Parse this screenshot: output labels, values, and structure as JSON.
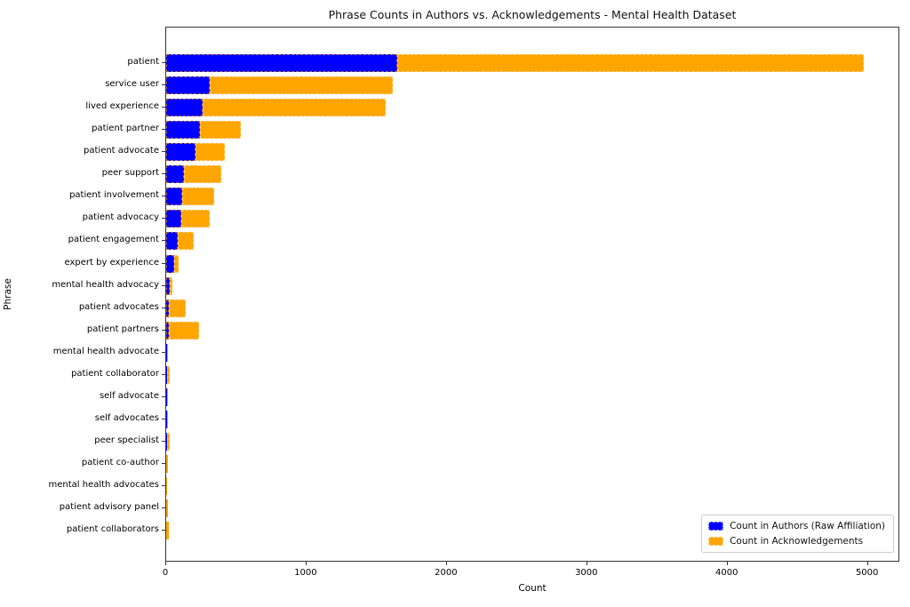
{
  "title": "Phrase Counts in Authors vs. Acknowledgements - Mental Health Dataset",
  "xlabel": "Count",
  "ylabel": "Phrase",
  "legend": {
    "items": [
      {
        "label": "Count in Authors (Raw Affiliation)",
        "color": "#0000ff"
      },
      {
        "label": "Count in Acknowledgements",
        "color": "#ffa500"
      }
    ],
    "position": "lower right"
  },
  "axis": {
    "xticks": [
      "0",
      "1000",
      "2000",
      "3000",
      "4000",
      "5000"
    ],
    "xtick_values": [
      0,
      1000,
      2000,
      3000,
      4000,
      5000
    ],
    "xlim": [
      0,
      5230
    ]
  },
  "chart_data": {
    "type": "bar",
    "orientation": "horizontal",
    "stacked": true,
    "title": "Phrase Counts in Authors vs. Acknowledgements - Mental Health Dataset",
    "xlabel": "Count",
    "ylabel": "Phrase",
    "xlim": [
      0,
      5230
    ],
    "grid": false,
    "legend_position": "lower right",
    "categories": [
      "patient",
      "service user",
      "lived experience",
      "patient partner",
      "patient advocate",
      "peer support",
      "patient involvement",
      "patient advocacy",
      "patient engagement",
      "expert by experience",
      "mental health advocacy",
      "patient advocates",
      "patient partners",
      "mental health advocate",
      "patient collaborator",
      "self advocate",
      "self advocates",
      "peer specialist",
      "patient co-author",
      "mental health advocates",
      "patient advisory panel",
      "patient collaborators"
    ],
    "series": [
      {
        "name": "Count in Authors (Raw Affiliation)",
        "color": "#0000ff",
        "values": [
          1650,
          310,
          260,
          240,
          210,
          130,
          115,
          105,
          80,
          57,
          26,
          22,
          20,
          8,
          6,
          8,
          7,
          5,
          2,
          2,
          1,
          2
        ]
      },
      {
        "name": "Count in Acknowledgements",
        "color": "#ffa500",
        "values": [
          3330,
          1310,
          1310,
          292,
          208,
          265,
          230,
          208,
          114,
          34,
          16,
          117,
          212,
          7,
          21,
          3,
          2,
          22,
          8,
          2,
          10,
          14
        ]
      }
    ]
  }
}
